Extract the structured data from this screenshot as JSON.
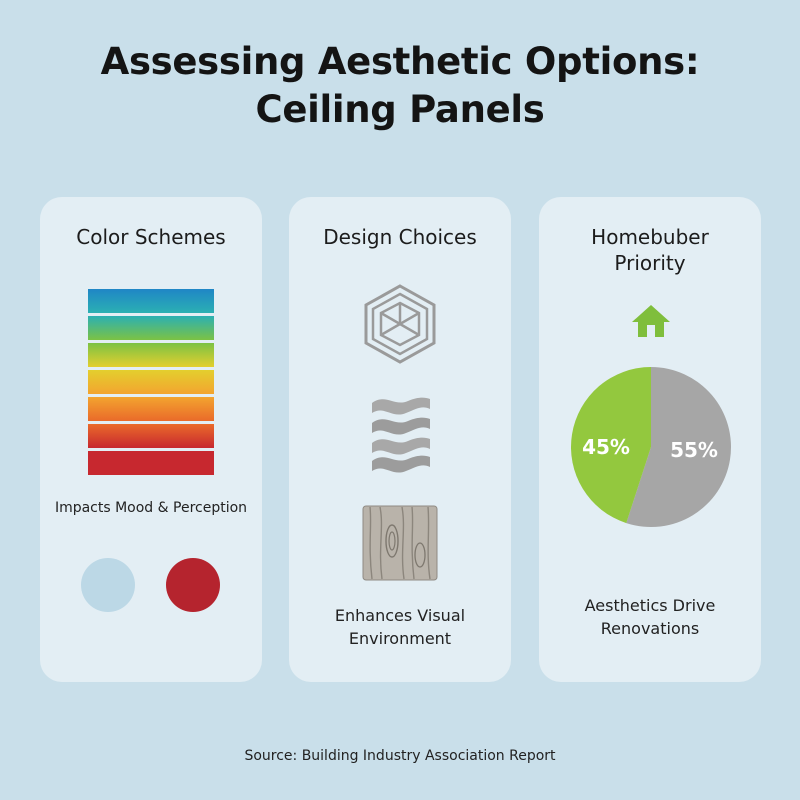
{
  "title": {
    "line1": "Assessing Aesthetic Options:",
    "line2": "Ceiling Panels"
  },
  "cards": [
    {
      "title": "Color Schemes",
      "gradient_colors": [
        "#1f86c6",
        "#2bb0b3",
        "#7cc244",
        "#e3cf2e",
        "#f3a42f",
        "#ea6a2a",
        "#c7282f"
      ],
      "caption": "Impacts Mood & Perception",
      "swatches": [
        "#bcd8e6",
        "#b5242e"
      ]
    },
    {
      "title": "Design Choices",
      "icons": [
        "hexagon-cube-icon",
        "wave-pattern-icon",
        "wood-grain-icon"
      ],
      "caption_line1": "Enhances Visual",
      "caption_line2": "Environment"
    },
    {
      "title_line1": "Homebuber",
      "title_line2": "Priority",
      "icon": "house-icon",
      "icon_color": "#7fbe3c",
      "caption_line1": "Aesthetics Drive",
      "caption_line2": "Renovations"
    }
  ],
  "chart_data": {
    "type": "pie",
    "categories": [
      "45%",
      "55%"
    ],
    "values": [
      45,
      55
    ],
    "colors": [
      "#93c83e",
      "#a6a6a6"
    ]
  },
  "footer": "Source: Building Industry Association Report"
}
